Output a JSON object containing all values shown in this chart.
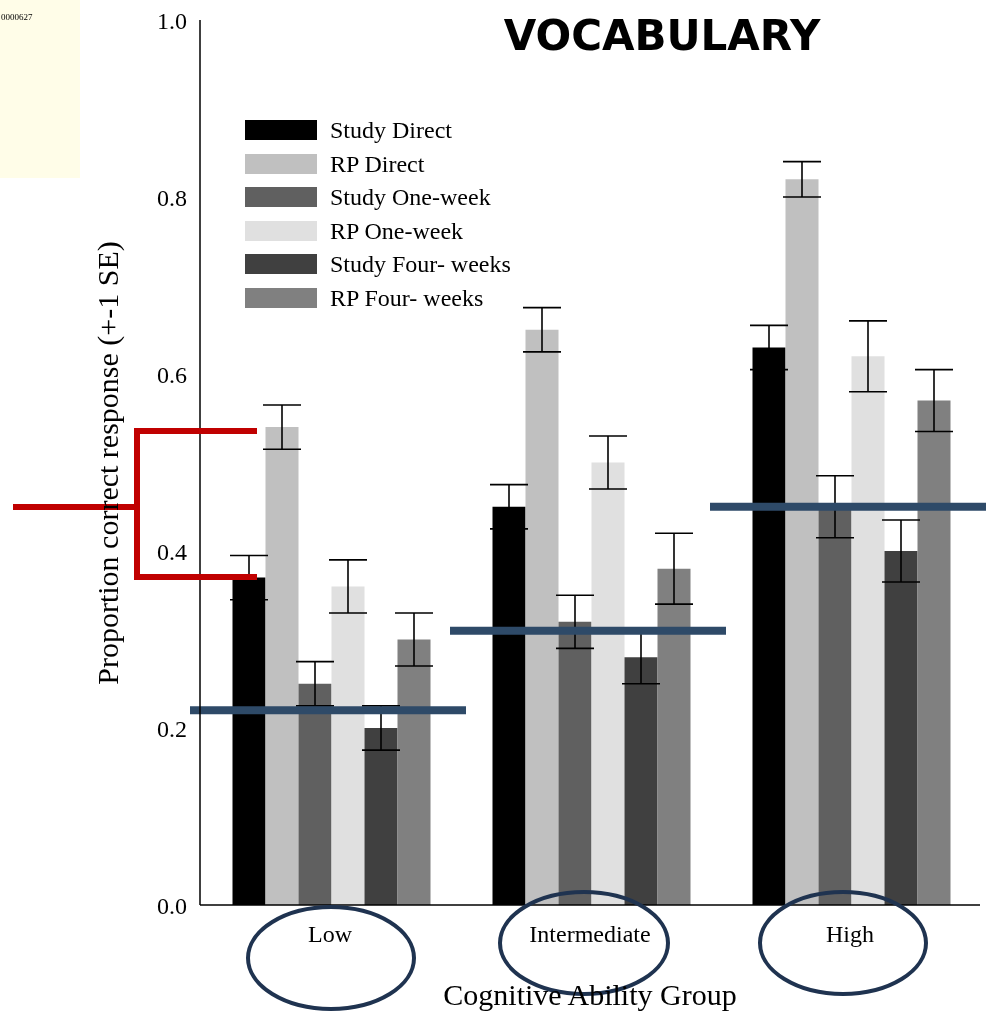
{
  "chart_data": {
    "type": "bar",
    "title": "VOCABULARY",
    "xlabel": "Cognitive Ability Group",
    "ylabel": "Proportion correct response (+-1 SE)",
    "categories": [
      "Low",
      "Intermediate",
      "High"
    ],
    "series": [
      {
        "name": "Study Direct",
        "color": "#000000",
        "values": [
          0.37,
          0.45,
          0.63
        ],
        "errors": [
          0.025,
          0.025,
          0.025
        ]
      },
      {
        "name": "RP Direct",
        "color": "#c0c0c0",
        "values": [
          0.54,
          0.65,
          0.82
        ],
        "errors": [
          0.025,
          0.025,
          0.02
        ]
      },
      {
        "name": "Study One-week",
        "color": "#606060",
        "values": [
          0.25,
          0.32,
          0.45
        ],
        "errors": [
          0.025,
          0.03,
          0.035
        ]
      },
      {
        "name": "RP One-week",
        "color": "#e0e0e0",
        "values": [
          0.36,
          0.5,
          0.62
        ],
        "errors": [
          0.03,
          0.03,
          0.04
        ]
      },
      {
        "name": "Study Four- weeks",
        "color": "#404040",
        "values": [
          0.2,
          0.28,
          0.4
        ],
        "errors": [
          0.025,
          0.03,
          0.035
        ]
      },
      {
        "name": "RP Four- weeks",
        "color": "#808080",
        "values": [
          0.3,
          0.38,
          0.57
        ],
        "errors": [
          0.03,
          0.04,
          0.035
        ]
      }
    ],
    "ylim": [
      0,
      1
    ],
    "yticks": [
      {
        "value": 0,
        "label": "0.0"
      },
      0.2,
      0.4,
      0.6,
      0.8,
      {
        "value": 1,
        "label": "1.0"
      }
    ],
    "legend": "top left",
    "ref_lines": [
      {
        "axis": "y",
        "value": 0.22,
        "color": "#2e4a68"
      },
      {
        "axis": "y",
        "value": 0.31,
        "color": "#2e4a68"
      },
      {
        "axis": "y",
        "value": 0.45,
        "color": "#2e4a68"
      }
    ],
    "annotations": [
      "0000627"
    ]
  }
}
